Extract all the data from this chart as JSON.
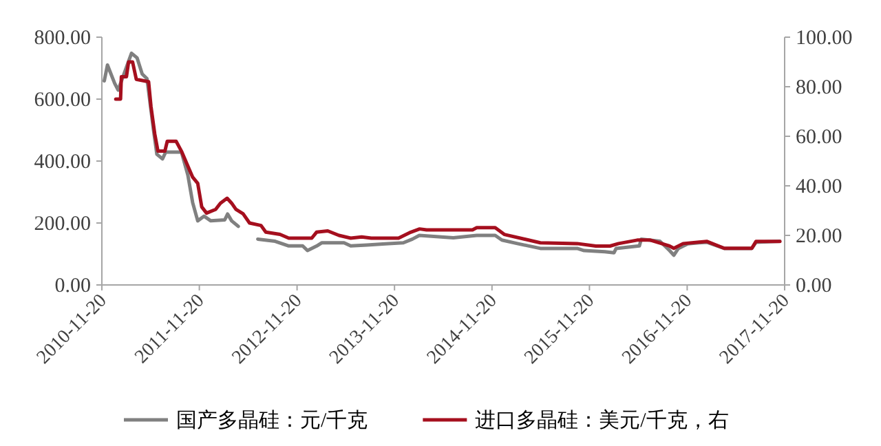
{
  "chart_data": {
    "type": "line",
    "xlim": [
      "2010-11-20",
      "2017-11-20"
    ],
    "xticks": [
      "2010-11-20",
      "2011-11-20",
      "2012-11-20",
      "2013-11-20",
      "2014-11-20",
      "2015-11-20",
      "2016-11-20",
      "2017-11-20"
    ],
    "ylim": [
      0,
      800
    ],
    "yticks": [
      {
        "value": 0,
        "label": "0.00"
      },
      {
        "value": 200,
        "label": "200.00"
      },
      {
        "value": 400,
        "label": "400.00"
      },
      {
        "value": 600,
        "label": "600.00"
      },
      {
        "value": 800,
        "label": "800.00"
      }
    ],
    "y2lim": [
      0,
      100
    ],
    "y2ticks": [
      {
        "value": 0,
        "label": "0.00"
      },
      {
        "value": 20,
        "label": "20.00"
      },
      {
        "value": 40,
        "label": "40.00"
      },
      {
        "value": 60,
        "label": "60.00"
      },
      {
        "value": 80,
        "label": "80.00"
      },
      {
        "value": 100,
        "label": "100.00"
      }
    ],
    "legend": "bottom",
    "grid": false,
    "series": [
      {
        "name": "国产多晶硅：元/千克",
        "color": "#808080",
        "x": [
          "2010-11-29",
          "2010-12-11",
          "2011-01-07",
          "2011-01-20",
          "2011-03-11",
          "2011-04-01",
          "2011-04-20",
          "2011-05-08",
          "2011-06-01",
          "2011-06-14",
          "2011-07-05",
          "2011-07-17",
          "2011-09-14",
          "2011-10-08",
          "2011-10-26",
          "2011-11-14",
          "2011-12-08",
          "2012-01-02",
          "2012-02-23",
          "2012-03-05",
          "2012-03-20",
          "2012-04-14",
          "2012-05-20",
          "2012-06-26",
          "2012-08-30",
          "2012-10-20",
          "2012-12-11",
          "2012-12-29",
          "2013-02-02",
          "2013-02-20",
          "2013-05-15",
          "2013-06-09",
          "2013-08-09",
          "2013-10-17",
          "2013-12-23",
          "2014-01-26",
          "2014-02-21",
          "2014-06-28",
          "2014-09-24",
          "2014-12-02",
          "2014-12-27",
          "2015-02-26",
          "2015-05-20",
          "2015-10-05",
          "2015-10-31",
          "2016-01-17",
          "2016-02-20",
          "2016-02-28",
          "2016-05-25",
          "2016-06-01",
          "2016-08-10",
          "2016-09-15",
          "2016-10-01",
          "2016-10-18",
          "2016-11-22",
          "2017-02-01",
          "2017-04-08",
          "2017-07-20",
          "2017-08-05",
          "2017-11-02"
        ],
        "values": [
          659,
          710,
          651,
          629,
          748,
          733,
          681,
          666,
          503,
          422,
          407,
          429,
          429,
          355,
          266,
          207,
          222,
          207,
          210,
          229,
          207,
          189,
          null,
          148,
          141,
          126,
          126,
          111,
          126,
          136,
          136,
          126,
          129,
          133,
          136,
          148,
          160,
          152,
          160,
          160,
          145,
          133,
          118,
          118,
          111,
          107,
          104,
          118,
          126,
          148,
          141,
          111,
          96,
          118,
          133,
          138,
          118,
          118,
          138,
          141
        ]
      },
      {
        "name": "进口多晶硅：美元/千克，右",
        "color": "#a50f1e",
        "axis": "y2",
        "x": [
          "2011-01-11",
          "2011-01-29",
          "2011-02-01",
          "2011-02-20",
          "2011-02-28",
          "2011-03-15",
          "2011-03-29",
          "2011-05-14",
          "2011-05-23",
          "2011-06-06",
          "2011-06-18",
          "2011-07-14",
          "2011-07-23",
          "2011-08-25",
          "2011-09-14",
          "2011-10-08",
          "2011-10-26",
          "2011-11-14",
          "2011-11-29",
          "2011-12-17",
          "2012-01-20",
          "2012-02-07",
          "2012-03-03",
          "2012-03-20",
          "2012-04-05",
          "2012-05-02",
          "2012-05-26",
          "2012-07-08",
          "2012-07-26",
          "2012-09-17",
          "2012-10-20",
          "2013-01-14",
          "2013-02-01",
          "2013-03-15",
          "2013-04-26",
          "2013-06-09",
          "2013-07-20",
          "2013-08-25",
          "2013-12-05",
          "2014-01-20",
          "2014-02-22",
          "2014-03-20",
          "2014-09-08",
          "2014-09-24",
          "2014-12-02",
          "2015-01-05",
          "2015-05-20",
          "2015-10-05",
          "2015-12-14",
          "2016-02-05",
          "2016-03-08",
          "2016-05-17",
          "2016-07-05",
          "2016-09-15",
          "2016-10-01",
          "2016-11-05",
          "2017-02-01",
          "2017-04-08",
          "2017-07-20",
          "2017-08-05",
          "2017-11-02"
        ],
        "values": [
          75,
          75,
          84,
          84,
          90,
          90,
          83,
          82,
          72,
          61,
          54,
          54,
          58,
          58,
          54,
          48,
          43.5,
          41,
          31.5,
          29,
          30.5,
          33,
          35,
          33,
          30.5,
          28.7,
          25,
          24,
          21.3,
          20.4,
          18.9,
          18.9,
          21.3,
          21.8,
          20,
          18.9,
          19.4,
          18.9,
          18.9,
          21.3,
          22.6,
          22.2,
          22.2,
          23.1,
          23.1,
          20.4,
          17,
          16.7,
          15.7,
          15.7,
          16.7,
          18.1,
          18.1,
          15.7,
          14.8,
          16.7,
          17.6,
          14.8,
          14.8,
          17.6,
          17.6
        ]
      }
    ]
  }
}
